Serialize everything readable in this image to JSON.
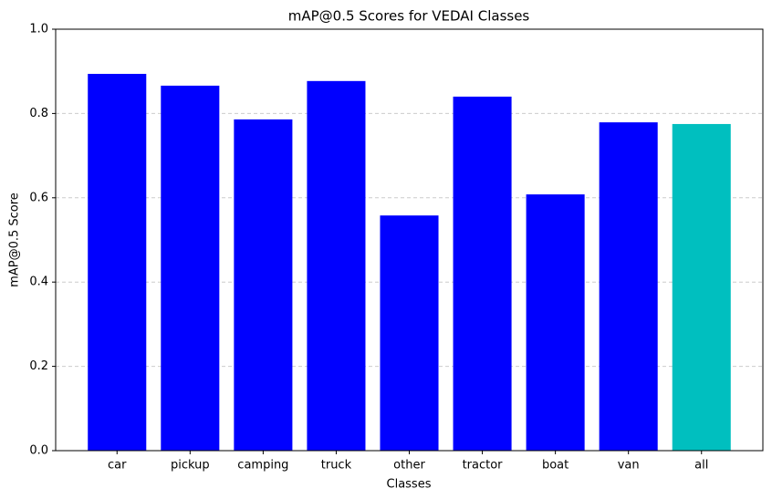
{
  "chart_data": {
    "type": "bar",
    "title": "mAP@0.5 Scores for VEDAI Classes",
    "xlabel": "Classes",
    "ylabel": "mAP@0.5 Score",
    "categories": [
      "car",
      "pickup",
      "camping",
      "truck",
      "other",
      "tractor",
      "boat",
      "van",
      "all"
    ],
    "values": [
      0.894,
      0.866,
      0.786,
      0.877,
      0.558,
      0.84,
      0.608,
      0.779,
      0.775
    ],
    "colors": [
      "#0000ff",
      "#0000ff",
      "#0000ff",
      "#0000ff",
      "#0000ff",
      "#0000ff",
      "#0000ff",
      "#0000ff",
      "#00bfbf"
    ],
    "ylim": [
      0,
      1
    ],
    "yticks": [
      {
        "value": 0,
        "label": "0.0"
      },
      0.2,
      0.4,
      0.6,
      0.8,
      {
        "value": 1,
        "label": "1.0"
      }
    ],
    "grid": true
  }
}
